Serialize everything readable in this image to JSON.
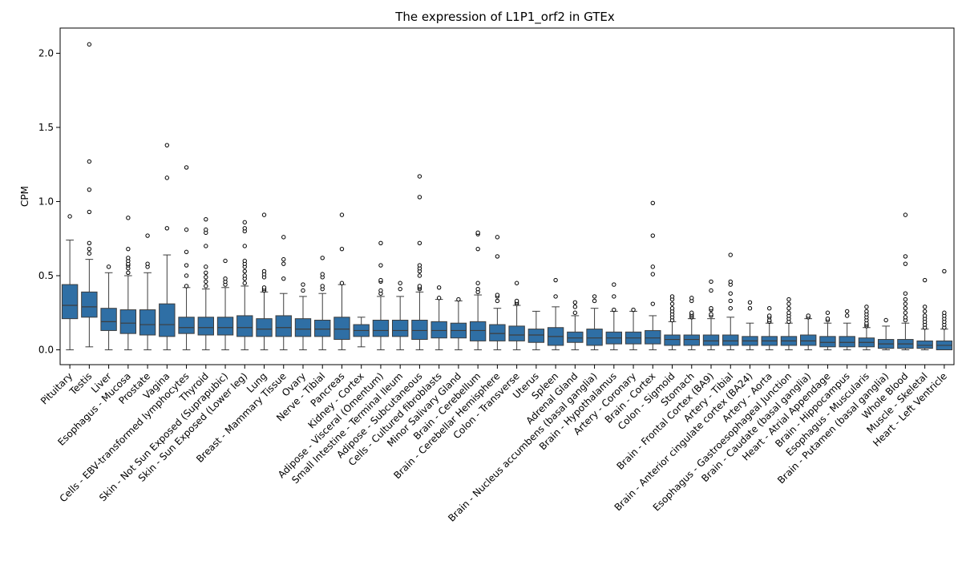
{
  "chart_data": {
    "type": "box",
    "title": "The expression of L1P1_orf2 in GTEx",
    "xlabel": "",
    "ylabel": "CPM",
    "ylim": [
      -0.1,
      2.17
    ],
    "yticks": [
      "0.0",
      "0.5",
      "1.0",
      "1.5",
      "2.0"
    ],
    "box_color": "#2f6fa5",
    "grid": false,
    "boxes": [
      {
        "category": "Pituitary",
        "whislo": 0.0,
        "q1": 0.21,
        "med": 0.3,
        "q3": 0.44,
        "whishi": 0.74,
        "fliers": [
          0.9
        ]
      },
      {
        "category": "Testis",
        "whislo": 0.02,
        "q1": 0.22,
        "med": 0.29,
        "q3": 0.39,
        "whishi": 0.61,
        "fliers": [
          0.65,
          0.68,
          0.72,
          0.93,
          1.08,
          1.27,
          2.06
        ]
      },
      {
        "category": "Liver",
        "whislo": 0.0,
        "q1": 0.13,
        "med": 0.19,
        "q3": 0.28,
        "whishi": 0.52,
        "fliers": [
          0.56
        ]
      },
      {
        "category": "Esophagus - Mucosa",
        "whislo": 0.0,
        "q1": 0.11,
        "med": 0.18,
        "q3": 0.27,
        "whishi": 0.5,
        "fliers": [
          0.52,
          0.55,
          0.57,
          0.58,
          0.6,
          0.62,
          0.68,
          0.89
        ]
      },
      {
        "category": "Prostate",
        "whislo": 0.0,
        "q1": 0.1,
        "med": 0.17,
        "q3": 0.27,
        "whishi": 0.52,
        "fliers": [
          0.56,
          0.58,
          0.77
        ]
      },
      {
        "category": "Vagina",
        "whislo": 0.0,
        "q1": 0.09,
        "med": 0.17,
        "q3": 0.31,
        "whishi": 0.64,
        "fliers": [
          0.82,
          1.16,
          1.38
        ]
      },
      {
        "category": "Cells - EBV-transformed lymphocytes",
        "whislo": 0.0,
        "q1": 0.11,
        "med": 0.15,
        "q3": 0.22,
        "whishi": 0.42,
        "fliers": [
          0.43,
          0.5,
          0.57,
          0.66,
          0.81,
          1.23
        ]
      },
      {
        "category": "Thyroid",
        "whislo": 0.0,
        "q1": 0.1,
        "med": 0.15,
        "q3": 0.22,
        "whishi": 0.41,
        "fliers": [
          0.43,
          0.46,
          0.49,
          0.52,
          0.56,
          0.7,
          0.79,
          0.81,
          0.88
        ]
      },
      {
        "category": "Skin - Not Sun Exposed (Suprapubic)",
        "whislo": 0.0,
        "q1": 0.1,
        "med": 0.15,
        "q3": 0.22,
        "whishi": 0.42,
        "fliers": [
          0.44,
          0.46,
          0.48,
          0.6
        ]
      },
      {
        "category": "Skin - Sun Exposed (Lower leg)",
        "whislo": 0.0,
        "q1": 0.09,
        "med": 0.15,
        "q3": 0.23,
        "whishi": 0.43,
        "fliers": [
          0.45,
          0.48,
          0.5,
          0.53,
          0.56,
          0.58,
          0.6,
          0.7,
          0.8,
          0.82,
          0.86
        ]
      },
      {
        "category": "Lung",
        "whislo": 0.0,
        "q1": 0.09,
        "med": 0.14,
        "q3": 0.21,
        "whishi": 0.39,
        "fliers": [
          0.4,
          0.41,
          0.42,
          0.49,
          0.51,
          0.53,
          0.91
        ]
      },
      {
        "category": "Breast - Mammary Tissue",
        "whislo": 0.0,
        "q1": 0.09,
        "med": 0.15,
        "q3": 0.23,
        "whishi": 0.38,
        "fliers": [
          0.48,
          0.58,
          0.61,
          0.76
        ]
      },
      {
        "category": "Ovary",
        "whislo": 0.0,
        "q1": 0.09,
        "med": 0.14,
        "q3": 0.21,
        "whishi": 0.36,
        "fliers": [
          0.4,
          0.44
        ]
      },
      {
        "category": "Nerve - Tibial",
        "whislo": 0.0,
        "q1": 0.09,
        "med": 0.14,
        "q3": 0.2,
        "whishi": 0.38,
        "fliers": [
          0.41,
          0.43,
          0.49,
          0.51,
          0.62
        ]
      },
      {
        "category": "Pancreas",
        "whislo": 0.0,
        "q1": 0.07,
        "med": 0.14,
        "q3": 0.22,
        "whishi": 0.44,
        "fliers": [
          0.45,
          0.68,
          0.91
        ]
      },
      {
        "category": "Kidney - Cortex",
        "whislo": 0.02,
        "q1": 0.09,
        "med": 0.13,
        "q3": 0.17,
        "whishi": 0.22,
        "fliers": []
      },
      {
        "category": "Adipose - Visceral (Omentum)",
        "whislo": 0.0,
        "q1": 0.09,
        "med": 0.13,
        "q3": 0.2,
        "whishi": 0.36,
        "fliers": [
          0.38,
          0.4,
          0.46,
          0.47,
          0.57,
          0.72
        ]
      },
      {
        "category": "Small Intestine - Terminal Ileum",
        "whislo": 0.0,
        "q1": 0.09,
        "med": 0.13,
        "q3": 0.2,
        "whishi": 0.36,
        "fliers": [
          0.41,
          0.45
        ]
      },
      {
        "category": "Adipose - Subcutaneous",
        "whislo": 0.0,
        "q1": 0.07,
        "med": 0.13,
        "q3": 0.2,
        "whishi": 0.39,
        "fliers": [
          0.41,
          0.42,
          0.43,
          0.5,
          0.53,
          0.55,
          0.57,
          0.72,
          1.03,
          1.17
        ]
      },
      {
        "category": "Cells - Cultured fibroblasts",
        "whislo": 0.0,
        "q1": 0.08,
        "med": 0.13,
        "q3": 0.19,
        "whishi": 0.34,
        "fliers": [
          0.35,
          0.42
        ]
      },
      {
        "category": "Minor Salivary Gland",
        "whislo": 0.0,
        "q1": 0.08,
        "med": 0.13,
        "q3": 0.18,
        "whishi": 0.33,
        "fliers": [
          0.34
        ]
      },
      {
        "category": "Brain - Cerebellum",
        "whislo": 0.0,
        "q1": 0.06,
        "med": 0.13,
        "q3": 0.19,
        "whishi": 0.37,
        "fliers": [
          0.39,
          0.41,
          0.45,
          0.68,
          0.78,
          0.79
        ]
      },
      {
        "category": "Brain - Cerebellar Hemisphere",
        "whislo": 0.0,
        "q1": 0.06,
        "med": 0.11,
        "q3": 0.17,
        "whishi": 0.28,
        "fliers": [
          0.33,
          0.36,
          0.37,
          0.63,
          0.76
        ]
      },
      {
        "category": "Colon - Transverse",
        "whislo": 0.0,
        "q1": 0.06,
        "med": 0.1,
        "q3": 0.16,
        "whishi": 0.3,
        "fliers": [
          0.31,
          0.32,
          0.33,
          0.45
        ]
      },
      {
        "category": "Uterus",
        "whislo": 0.0,
        "q1": 0.05,
        "med": 0.1,
        "q3": 0.14,
        "whishi": 0.26,
        "fliers": []
      },
      {
        "category": "Spleen",
        "whislo": 0.0,
        "q1": 0.03,
        "med": 0.09,
        "q3": 0.15,
        "whishi": 0.29,
        "fliers": [
          0.36,
          0.47
        ]
      },
      {
        "category": "Adrenal Gland",
        "whislo": 0.0,
        "q1": 0.05,
        "med": 0.08,
        "q3": 0.12,
        "whishi": 0.23,
        "fliers": [
          0.25,
          0.29,
          0.32
        ]
      },
      {
        "category": "Brain - Nucleus accumbens (basal ganglia)",
        "whislo": 0.0,
        "q1": 0.03,
        "med": 0.08,
        "q3": 0.14,
        "whishi": 0.28,
        "fliers": [
          0.33,
          0.36
        ]
      },
      {
        "category": "Brain - Hypothalamus",
        "whislo": 0.0,
        "q1": 0.04,
        "med": 0.08,
        "q3": 0.12,
        "whishi": 0.26,
        "fliers": [
          0.27,
          0.36,
          0.44
        ]
      },
      {
        "category": "Artery - Coronary",
        "whislo": 0.0,
        "q1": 0.04,
        "med": 0.08,
        "q3": 0.12,
        "whishi": 0.26,
        "fliers": [
          0.27
        ]
      },
      {
        "category": "Brain - Cortex",
        "whislo": 0.0,
        "q1": 0.04,
        "med": 0.08,
        "q3": 0.13,
        "whishi": 0.23,
        "fliers": [
          0.31,
          0.51,
          0.56,
          0.77,
          0.99
        ]
      },
      {
        "category": "Colon - Sigmoid",
        "whislo": 0.0,
        "q1": 0.03,
        "med": 0.07,
        "q3": 0.1,
        "whishi": 0.19,
        "fliers": [
          0.2,
          0.22,
          0.24,
          0.26,
          0.28,
          0.31,
          0.34,
          0.36
        ]
      },
      {
        "category": "Stomach",
        "whislo": 0.0,
        "q1": 0.03,
        "med": 0.07,
        "q3": 0.1,
        "whishi": 0.21,
        "fliers": [
          0.22,
          0.23,
          0.24,
          0.25,
          0.33,
          0.35
        ]
      },
      {
        "category": "Brain - Frontal Cortex (BA9)",
        "whislo": 0.0,
        "q1": 0.03,
        "med": 0.06,
        "q3": 0.1,
        "whishi": 0.21,
        "fliers": [
          0.23,
          0.24,
          0.27,
          0.28,
          0.4,
          0.46
        ]
      },
      {
        "category": "Artery - Tibial",
        "whislo": 0.0,
        "q1": 0.03,
        "med": 0.06,
        "q3": 0.1,
        "whishi": 0.22,
        "fliers": [
          0.28,
          0.33,
          0.38,
          0.44,
          0.46,
          0.64
        ]
      },
      {
        "category": "Brain - Anterior cingulate cortex (BA24)",
        "whislo": 0.0,
        "q1": 0.03,
        "med": 0.06,
        "q3": 0.09,
        "whishi": 0.18,
        "fliers": [
          0.28,
          0.32
        ]
      },
      {
        "category": "Artery - Aorta",
        "whislo": 0.0,
        "q1": 0.03,
        "med": 0.06,
        "q3": 0.09,
        "whishi": 0.18,
        "fliers": [
          0.19,
          0.2,
          0.22,
          0.23,
          0.28
        ]
      },
      {
        "category": "Esophagus - Gastroesophageal Junction",
        "whislo": 0.0,
        "q1": 0.03,
        "med": 0.06,
        "q3": 0.09,
        "whishi": 0.18,
        "fliers": [
          0.19,
          0.21,
          0.23,
          0.25,
          0.28,
          0.31,
          0.34
        ]
      },
      {
        "category": "Brain - Caudate (basal ganglia)",
        "whislo": 0.0,
        "q1": 0.03,
        "med": 0.06,
        "q3": 0.1,
        "whishi": 0.21,
        "fliers": [
          0.22,
          0.23
        ]
      },
      {
        "category": "Heart - Atrial Appendage",
        "whislo": 0.0,
        "q1": 0.02,
        "med": 0.05,
        "q3": 0.09,
        "whishi": 0.18,
        "fliers": [
          0.2,
          0.21,
          0.25
        ]
      },
      {
        "category": "Brain - Hippocampus",
        "whislo": 0.0,
        "q1": 0.02,
        "med": 0.05,
        "q3": 0.09,
        "whishi": 0.18,
        "fliers": [
          0.23,
          0.26
        ]
      },
      {
        "category": "Esophagus - Muscularis",
        "whislo": 0.0,
        "q1": 0.02,
        "med": 0.05,
        "q3": 0.08,
        "whishi": 0.15,
        "fliers": [
          0.16,
          0.17,
          0.18,
          0.2,
          0.22,
          0.24,
          0.26,
          0.29
        ]
      },
      {
        "category": "Brain - Putamen (basal ganglia)",
        "whislo": 0.0,
        "q1": 0.01,
        "med": 0.04,
        "q3": 0.07,
        "whishi": 0.16,
        "fliers": [
          0.2
        ]
      },
      {
        "category": "Whole Blood",
        "whislo": 0.0,
        "q1": 0.01,
        "med": 0.04,
        "q3": 0.07,
        "whishi": 0.18,
        "fliers": [
          0.2,
          0.22,
          0.25,
          0.28,
          0.31,
          0.34,
          0.38,
          0.58,
          0.63,
          0.91
        ]
      },
      {
        "category": "Muscle - Skeletal",
        "whislo": 0.0,
        "q1": 0.01,
        "med": 0.03,
        "q3": 0.06,
        "whishi": 0.14,
        "fliers": [
          0.15,
          0.17,
          0.19,
          0.21,
          0.23,
          0.26,
          0.29,
          0.47
        ]
      },
      {
        "category": "Heart - Left Ventricle",
        "whislo": 0.0,
        "q1": 0.0,
        "med": 0.03,
        "q3": 0.06,
        "whishi": 0.14,
        "fliers": [
          0.15,
          0.17,
          0.19,
          0.21,
          0.23,
          0.25,
          0.53
        ]
      }
    ]
  }
}
